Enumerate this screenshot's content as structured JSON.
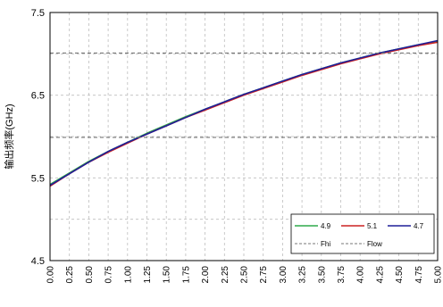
{
  "chart_data": {
    "type": "line",
    "xlabel": "",
    "ylabel": "输出频率(GHz)",
    "xlim": [
      0,
      5
    ],
    "ylim": [
      4.5,
      7.5
    ],
    "x_tick_labels": [
      "0.00",
      "0.25",
      "0.50",
      "0.75",
      "1.00",
      "1.25",
      "1.50",
      "1.75",
      "2.00",
      "2.25",
      "2.50",
      "2.75",
      "3.00",
      "3.25",
      "3.50",
      "3.75",
      "4.00",
      "4.25",
      "4.50",
      "4.75",
      "5.00"
    ],
    "y_tick_labels": [
      "4.5",
      "",
      "5.5",
      "",
      "6.5",
      "",
      "7.5"
    ],
    "y_tick_values": [
      4.5,
      5.0,
      5.5,
      6.0,
      6.5,
      7.0,
      7.5
    ],
    "grid": true,
    "legend_position": "bottom-right",
    "x": [
      0.0,
      0.25,
      0.5,
      0.75,
      1.0,
      1.25,
      1.5,
      1.75,
      2.0,
      2.25,
      2.5,
      2.75,
      3.0,
      3.25,
      3.5,
      3.75,
      4.0,
      4.25,
      4.5,
      4.75,
      5.0
    ],
    "series": [
      {
        "name": "4.9",
        "color": "#2eaa4a",
        "dash": "solid",
        "values": [
          5.42,
          5.56,
          5.7,
          5.82,
          5.93,
          6.04,
          6.14,
          6.24,
          6.33,
          6.42,
          6.51,
          6.59,
          6.67,
          6.75,
          6.82,
          6.89,
          6.95,
          7.01,
          7.06,
          7.11,
          7.15
        ]
      },
      {
        "name": "5.1",
        "color": "#cc2222",
        "dash": "solid",
        "values": [
          5.4,
          5.55,
          5.69,
          5.81,
          5.92,
          6.03,
          6.13,
          6.23,
          6.32,
          6.41,
          6.5,
          6.58,
          6.66,
          6.74,
          6.81,
          6.88,
          6.94,
          7.0,
          7.05,
          7.1,
          7.14
        ]
      },
      {
        "name": "4.7",
        "color": "#1f1f99",
        "dash": "solid",
        "values": [
          5.41,
          5.55,
          5.69,
          5.82,
          5.93,
          6.03,
          6.13,
          6.23,
          6.33,
          6.42,
          6.51,
          6.59,
          6.67,
          6.75,
          6.82,
          6.89,
          6.95,
          7.01,
          7.06,
          7.11,
          7.16
        ]
      },
      {
        "name": "Fhi",
        "color": "#777777",
        "dash": "dashed",
        "values": [
          7.01,
          7.01,
          7.01,
          7.01,
          7.01,
          7.01,
          7.01,
          7.01,
          7.01,
          7.01,
          7.01,
          7.01,
          7.01,
          7.01,
          7.01,
          7.01,
          7.01,
          7.01,
          7.01,
          7.01,
          7.01
        ]
      },
      {
        "name": "Flow",
        "color": "#777777",
        "dash": "dashed",
        "values": [
          5.99,
          5.99,
          5.99,
          5.99,
          5.99,
          5.99,
          5.99,
          5.99,
          5.99,
          5.99,
          5.99,
          5.99,
          5.99,
          5.99,
          5.99,
          5.99,
          5.99,
          5.99,
          5.99,
          5.99,
          5.99
        ]
      }
    ]
  }
}
